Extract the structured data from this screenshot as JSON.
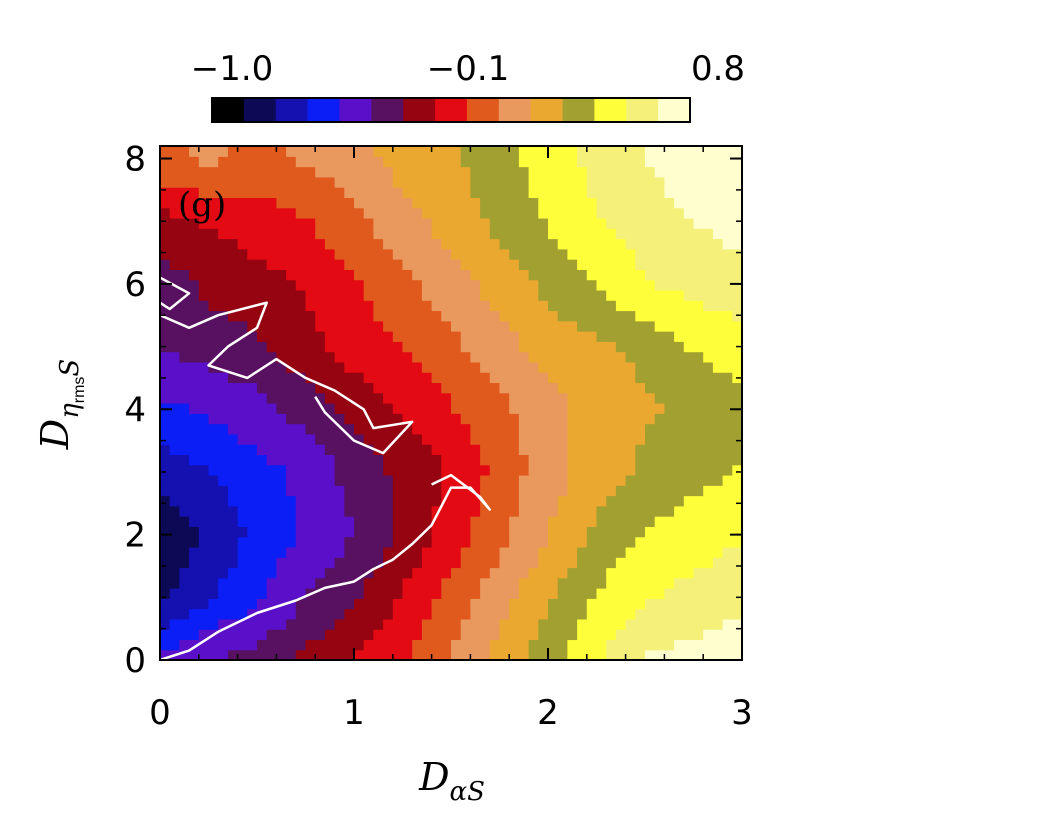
{
  "chart_data": {
    "type": "heatmap",
    "panel_label": "(g)",
    "xlabel": {
      "main": "D",
      "sub": "αS"
    },
    "ylabel": {
      "main": "D",
      "sub_eta": "η",
      "sub_rms": "rms",
      "sub_s": "S"
    },
    "xlim": [
      0,
      3
    ],
    "ylim": [
      0,
      8.2
    ],
    "x_ticks": [
      "0",
      "1",
      "2",
      "3"
    ],
    "x_tick_values": [
      0,
      1,
      2,
      3
    ],
    "y_ticks": [
      "0",
      "2",
      "4",
      "6",
      "8"
    ],
    "y_tick_values": [
      0,
      2,
      4,
      6,
      8
    ],
    "grid": false,
    "colorbar": {
      "orientation": "horizontal",
      "placement": "top",
      "range": [
        -1.0,
        0.8
      ],
      "tick_labels": [
        "−1.0",
        "−0.1",
        "0.8"
      ],
      "tick_values": [
        -1.0,
        -0.1,
        0.8
      ],
      "levels": 15,
      "colors": [
        "#000000",
        "#0c0a55",
        "#1510b0",
        "#0a1ef5",
        "#5a10c8",
        "#581060",
        "#950410",
        "#e40a14",
        "#e05a1e",
        "#e9985e",
        "#eaa830",
        "#a2a030",
        "#fefe3a",
        "#f4f07a",
        "#fefece"
      ]
    },
    "x_samples": [
      0,
      0.25,
      0.5,
      0.75,
      1.0,
      1.25,
      1.5,
      1.75,
      2.0,
      2.25,
      2.5,
      2.75,
      3.0
    ],
    "y_samples": [
      0,
      1,
      2,
      3,
      4,
      5,
      6,
      7,
      8
    ],
    "z_values": [
      [
        -0.5,
        -0.4,
        -0.35,
        -0.25,
        -0.15,
        -0.05,
        0.1,
        0.25,
        0.4,
        0.55,
        0.7,
        0.72,
        0.75
      ],
      [
        -0.8,
        -0.65,
        -0.55,
        -0.4,
        -0.3,
        -0.15,
        0.0,
        0.15,
        0.3,
        0.45,
        0.55,
        0.6,
        0.65
      ],
      [
        -0.85,
        -0.75,
        -0.6,
        -0.5,
        -0.4,
        -0.25,
        -0.1,
        0.05,
        0.2,
        0.35,
        0.45,
        0.5,
        0.55
      ],
      [
        -0.7,
        -0.65,
        -0.55,
        -0.5,
        -0.35,
        -0.25,
        -0.15,
        0.0,
        0.15,
        0.25,
        0.35,
        0.4,
        0.45
      ],
      [
        -0.55,
        -0.5,
        -0.45,
        -0.35,
        -0.25,
        -0.15,
        -0.05,
        0.05,
        0.15,
        0.25,
        0.3,
        0.35,
        0.4
      ],
      [
        -0.4,
        -0.35,
        -0.3,
        -0.2,
        -0.1,
        -0.05,
        0.05,
        0.15,
        0.25,
        0.3,
        0.35,
        0.45,
        0.5
      ],
      [
        -0.35,
        -0.25,
        -0.2,
        -0.15,
        -0.05,
        0.05,
        0.15,
        0.25,
        0.35,
        0.45,
        0.55,
        0.6,
        0.65
      ],
      [
        -0.2,
        -0.15,
        -0.1,
        -0.05,
        0.05,
        0.15,
        0.25,
        0.35,
        0.45,
        0.55,
        0.62,
        0.68,
        0.72
      ],
      [
        0.05,
        0.1,
        0.05,
        0.1,
        0.15,
        0.25,
        0.3,
        0.4,
        0.5,
        0.6,
        0.68,
        0.75,
        0.78
      ]
    ],
    "contour": {
      "level": -0.1,
      "color": "#ffffff",
      "path_main": [
        [
          0.0,
          0.0
        ],
        [
          0.15,
          0.15
        ],
        [
          0.3,
          0.45
        ],
        [
          0.5,
          0.75
        ],
        [
          0.7,
          0.95
        ],
        [
          0.85,
          1.15
        ],
        [
          1.0,
          1.25
        ],
        [
          1.1,
          1.45
        ],
        [
          1.2,
          1.6
        ],
        [
          1.3,
          1.85
        ],
        [
          1.4,
          2.15
        ],
        [
          1.45,
          2.45
        ],
        [
          1.5,
          2.75
        ],
        [
          1.6,
          2.75
        ],
        [
          1.7,
          2.4
        ],
        [
          1.65,
          2.6
        ],
        [
          1.5,
          2.95
        ],
        [
          1.4,
          2.8
        ]
      ],
      "path_upper": [
        [
          0.0,
          5.5
        ],
        [
          0.15,
          5.3
        ],
        [
          0.3,
          5.5
        ],
        [
          0.55,
          5.7
        ],
        [
          0.5,
          5.3
        ],
        [
          0.35,
          5.0
        ],
        [
          0.25,
          4.7
        ],
        [
          0.45,
          4.5
        ],
        [
          0.6,
          4.8
        ],
        [
          0.75,
          4.5
        ],
        [
          0.9,
          4.3
        ],
        [
          1.05,
          4.0
        ],
        [
          1.1,
          3.7
        ],
        [
          1.3,
          3.8
        ],
        [
          1.15,
          3.3
        ],
        [
          1.0,
          3.5
        ],
        [
          0.85,
          3.95
        ],
        [
          0.8,
          4.2
        ]
      ],
      "path_small": [
        [
          0.0,
          6.1
        ],
        [
          0.15,
          5.85
        ],
        [
          0.05,
          5.6
        ],
        [
          0.0,
          5.7
        ]
      ]
    }
  }
}
